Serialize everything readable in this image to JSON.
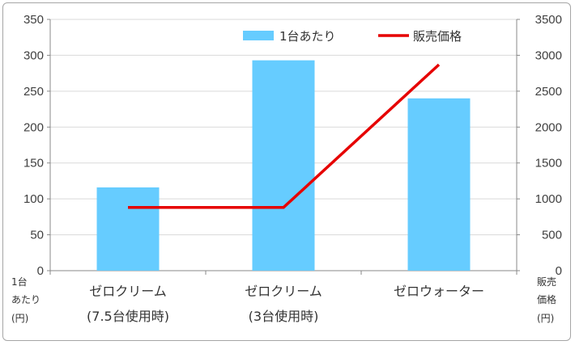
{
  "chart_data": {
    "type": "bar+line",
    "categories": [
      [
        "ゼロクリーム",
        "(7.5台使用時)"
      ],
      [
        "ゼロクリーム",
        "(3台使用時)"
      ],
      [
        "ゼロウォーター",
        ""
      ]
    ],
    "series": [
      {
        "name": "1台あたり",
        "type": "bar",
        "axis": "left",
        "color": "#66ccff",
        "values": [
          116,
          293,
          240
        ]
      },
      {
        "name": "販売価格",
        "type": "line",
        "axis": "right",
        "color": "#e60000",
        "values": [
          880,
          880,
          2870
        ]
      }
    ],
    "left_axis": {
      "label_lines": [
        "1台",
        "あたり",
        "(円)"
      ],
      "ylim": [
        0,
        350
      ],
      "ticks": [
        0,
        50,
        100,
        150,
        200,
        250,
        300,
        350
      ]
    },
    "right_axis": {
      "label_lines": [
        "販売",
        "価格",
        "(円)"
      ],
      "ylim": [
        0,
        3500
      ],
      "ticks": [
        0,
        500,
        1000,
        1500,
        2000,
        2500,
        3000,
        3500
      ]
    },
    "legend_position": "top-right",
    "grid": "horizontal"
  }
}
